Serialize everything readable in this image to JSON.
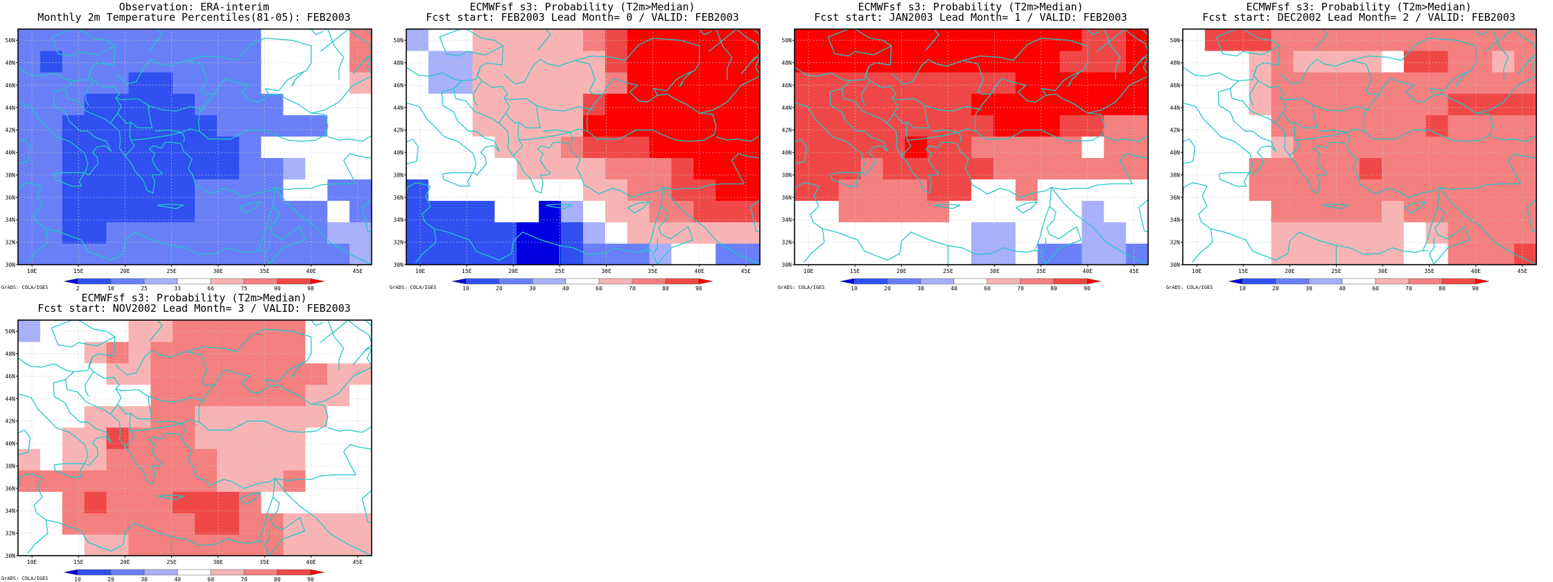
{
  "credit": "GrADS: COLA/IGES",
  "colors": {
    "coast": "#20c8c8",
    "frame": "#000000",
    "grid": "#c8c8c8",
    "palette": [
      "#0000e0",
      "#3050f0",
      "#6a80f6",
      "#a8b0fa",
      "#ffffff",
      "#f8b4b4",
      "#f48080",
      "#f04848",
      "#ff0000"
    ]
  },
  "chart_data": [
    {
      "type": "heatmap",
      "title": [
        "Observation: ERA-interim",
        "Monthly 2m Temperature Percentiles(81-05): FEB2003"
      ],
      "x_ticks": [
        "10E",
        "15E",
        "20E",
        "25E",
        "30E",
        "35E",
        "40E",
        "45E"
      ],
      "y_ticks": [
        "30N",
        "32N",
        "34N",
        "36N",
        "38N",
        "40N",
        "42N",
        "44N",
        "46N",
        "48N",
        "50N"
      ],
      "xlim": [
        8.5,
        46.5
      ],
      "ylim": [
        30,
        51
      ],
      "colorbar_labels": [
        "2",
        "10",
        "25",
        "33",
        "66",
        "75",
        "90",
        "98"
      ],
      "grid": [
        [
          2,
          2,
          2,
          2,
          2,
          2,
          2,
          2,
          2,
          2,
          2,
          2,
          2,
          2,
          2,
          3
        ],
        [
          2,
          2,
          1,
          1,
          2,
          2,
          2,
          2,
          2,
          2,
          2,
          2,
          2,
          2,
          3,
          3
        ],
        [
          2,
          2,
          1,
          1,
          1,
          1,
          1,
          1,
          2,
          2,
          2,
          2,
          2,
          2,
          4,
          2
        ],
        [
          2,
          2,
          1,
          1,
          1,
          1,
          1,
          1,
          2,
          2,
          2,
          2,
          4,
          4,
          2,
          2
        ],
        [
          2,
          2,
          1,
          1,
          1,
          1,
          1,
          1,
          1,
          1,
          2,
          2,
          3,
          4,
          4,
          4
        ],
        [
          2,
          2,
          1,
          1,
          1,
          1,
          1,
          1,
          1,
          1,
          2,
          4,
          4,
          4,
          4,
          4
        ],
        [
          2,
          2,
          1,
          1,
          1,
          1,
          1,
          1,
          1,
          2,
          2,
          2,
          2,
          2,
          4,
          4
        ],
        [
          2,
          2,
          2,
          1,
          1,
          1,
          1,
          1,
          2,
          2,
          2,
          2,
          4,
          4,
          4,
          4
        ],
        [
          2,
          2,
          2,
          2,
          2,
          1,
          1,
          2,
          2,
          2,
          2,
          4,
          4,
          4,
          4,
          5
        ],
        [
          2,
          1,
          2,
          2,
          2,
          2,
          2,
          2,
          2,
          2,
          2,
          4,
          4,
          4,
          4,
          6
        ],
        [
          2,
          2,
          2,
          2,
          2,
          2,
          2,
          2,
          2,
          2,
          2,
          4,
          4,
          4,
          4,
          6
        ]
      ]
    },
    {
      "type": "heatmap",
      "title": [
        "ECMWFsf s3: Probability (T2m>Median)",
        "Fcst start: FEB2003  Lead Month= 0 / VALID: FEB2003"
      ],
      "x_ticks": [
        "10E",
        "15E",
        "20E",
        "25E",
        "30E",
        "35E",
        "40E",
        "45E"
      ],
      "y_ticks": [
        "30N",
        "32N",
        "34N",
        "36N",
        "38N",
        "40N",
        "42N",
        "44N",
        "46N",
        "48N",
        "50N"
      ],
      "xlim": [
        8.5,
        46.5
      ],
      "ylim": [
        30,
        51
      ],
      "colorbar_labels": [
        "10",
        "20",
        "30",
        "40",
        "60",
        "70",
        "80",
        "90"
      ],
      "grid": [
        [
          1,
          1,
          1,
          1,
          1,
          0,
          0,
          1,
          2,
          2,
          2,
          3,
          4,
          4,
          2,
          2
        ],
        [
          1,
          1,
          1,
          1,
          1,
          0,
          0,
          1,
          3,
          4,
          5,
          5,
          5,
          5,
          5,
          5
        ],
        [
          1,
          1,
          1,
          1,
          4,
          4,
          0,
          3,
          4,
          5,
          5,
          6,
          6,
          7,
          7,
          7
        ],
        [
          1,
          4,
          4,
          4,
          4,
          4,
          4,
          4,
          5,
          5,
          6,
          6,
          7,
          7,
          8,
          8
        ],
        [
          4,
          4,
          4,
          4,
          4,
          5,
          5,
          5,
          5,
          6,
          6,
          6,
          7,
          8,
          8,
          8
        ],
        [
          4,
          4,
          4,
          4,
          5,
          5,
          5,
          6,
          7,
          7,
          7,
          8,
          8,
          8,
          8,
          8
        ],
        [
          4,
          4,
          4,
          5,
          5,
          5,
          5,
          5,
          8,
          8,
          8,
          8,
          8,
          8,
          8,
          8
        ],
        [
          4,
          4,
          4,
          5,
          5,
          5,
          5,
          5,
          7,
          8,
          8,
          8,
          8,
          8,
          8,
          8
        ],
        [
          4,
          3,
          3,
          5,
          5,
          5,
          5,
          5,
          5,
          6,
          8,
          8,
          8,
          8,
          8,
          8
        ],
        [
          4,
          3,
          3,
          5,
          5,
          5,
          5,
          5,
          5,
          7,
          8,
          8,
          8,
          8,
          8,
          8
        ],
        [
          3,
          4,
          4,
          5,
          5,
          5,
          5,
          5,
          6,
          7,
          8,
          8,
          8,
          8,
          8,
          8
        ]
      ]
    },
    {
      "type": "heatmap",
      "title": [
        "ECMWFsf s3: Probability (T2m>Median)",
        "Fcst start: JAN2003  Lead Month= 1 / VALID: FEB2003"
      ],
      "x_ticks": [
        "10E",
        "15E",
        "20E",
        "25E",
        "30E",
        "35E",
        "40E",
        "45E"
      ],
      "y_ticks": [
        "30N",
        "32N",
        "34N",
        "36N",
        "38N",
        "40N",
        "42N",
        "44N",
        "46N",
        "48N",
        "50N"
      ],
      "xlim": [
        8.5,
        46.5
      ],
      "ylim": [
        30,
        51
      ],
      "colorbar_labels": [
        "10",
        "20",
        "30",
        "40",
        "60",
        "70",
        "80",
        "90"
      ],
      "grid": [
        [
          4,
          4,
          4,
          4,
          4,
          4,
          4,
          4,
          3,
          3,
          4,
          2,
          2,
          3,
          3,
          2
        ],
        [
          4,
          4,
          4,
          4,
          4,
          4,
          4,
          4,
          3,
          3,
          4,
          4,
          4,
          3,
          3,
          4
        ],
        [
          4,
          4,
          6,
          6,
          6,
          6,
          6,
          4,
          4,
          4,
          4,
          4,
          4,
          3,
          4,
          4
        ],
        [
          7,
          7,
          6,
          6,
          6,
          6,
          7,
          7,
          4,
          4,
          6,
          4,
          4,
          4,
          4,
          4
        ],
        [
          7,
          7,
          7,
          6,
          7,
          7,
          7,
          7,
          7,
          6,
          6,
          6,
          6,
          6,
          6,
          6
        ],
        [
          7,
          7,
          7,
          7,
          7,
          8,
          7,
          7,
          6,
          6,
          6,
          6,
          6,
          4,
          6,
          6
        ],
        [
          7,
          7,
          7,
          7,
          7,
          7,
          7,
          7,
          7,
          8,
          8,
          8,
          7,
          7,
          6,
          6
        ],
        [
          7,
          7,
          7,
          7,
          7,
          7,
          7,
          7,
          8,
          8,
          8,
          8,
          8,
          8,
          8,
          8
        ],
        [
          7,
          7,
          7,
          7,
          7,
          7,
          7,
          7,
          7,
          7,
          8,
          8,
          8,
          8,
          8,
          8
        ],
        [
          8,
          8,
          8,
          8,
          8,
          8,
          8,
          8,
          8,
          8,
          8,
          8,
          7,
          7,
          7,
          8
        ],
        [
          8,
          8,
          8,
          8,
          8,
          8,
          8,
          8,
          8,
          8,
          8,
          8,
          8,
          7,
          7,
          8
        ]
      ]
    },
    {
      "type": "heatmap",
      "title": [
        "ECMWFsf s3: Probability (T2m>Median)",
        "Fcst start: DEC2002  Lead Month= 2 / VALID: FEB2003"
      ],
      "x_ticks": [
        "10E",
        "15E",
        "20E",
        "25E",
        "30E",
        "35E",
        "40E",
        "45E"
      ],
      "y_ticks": [
        "30N",
        "32N",
        "34N",
        "36N",
        "38N",
        "40N",
        "42N",
        "44N",
        "46N",
        "48N",
        "50N"
      ],
      "xlim": [
        8.5,
        46.5
      ],
      "ylim": [
        30,
        51
      ],
      "colorbar_labels": [
        "10",
        "20",
        "30",
        "40",
        "60",
        "70",
        "80",
        "90"
      ],
      "grid": [
        [
          4,
          4,
          4,
          4,
          5,
          5,
          5,
          5,
          5,
          5,
          4,
          4,
          6,
          6,
          6,
          7
        ],
        [
          4,
          4,
          4,
          4,
          5,
          5,
          5,
          5,
          5,
          5,
          4,
          5,
          6,
          6,
          6,
          6
        ],
        [
          4,
          4,
          4,
          4,
          6,
          6,
          6,
          6,
          6,
          5,
          6,
          6,
          6,
          6,
          6,
          6
        ],
        [
          4,
          4,
          4,
          6,
          6,
          6,
          6,
          6,
          6,
          6,
          6,
          6,
          6,
          6,
          6,
          6
        ],
        [
          4,
          4,
          4,
          6,
          6,
          6,
          6,
          6,
          7,
          6,
          6,
          6,
          6,
          6,
          6,
          6
        ],
        [
          4,
          4,
          4,
          4,
          5,
          6,
          6,
          6,
          6,
          6,
          6,
          6,
          6,
          6,
          6,
          6
        ],
        [
          4,
          4,
          4,
          4,
          6,
          6,
          6,
          6,
          6,
          6,
          6,
          7,
          6,
          6,
          6,
          6
        ],
        [
          4,
          4,
          4,
          5,
          6,
          6,
          6,
          6,
          6,
          6,
          6,
          6,
          7,
          7,
          7,
          7
        ],
        [
          4,
          4,
          4,
          5,
          6,
          6,
          6,
          6,
          6,
          6,
          6,
          6,
          6,
          6,
          6,
          6
        ],
        [
          4,
          4,
          4,
          5,
          6,
          5,
          5,
          5,
          5,
          4,
          7,
          7,
          6,
          6,
          5,
          6
        ],
        [
          4,
          7,
          7,
          7,
          6,
          6,
          6,
          6,
          6,
          6,
          6,
          6,
          6,
          6,
          6,
          6
        ]
      ]
    },
    {
      "type": "heatmap",
      "title": [
        "ECMWFsf s3: Probability (T2m>Median)",
        "Fcst start: NOV2002  Lead Month= 3 / VALID: FEB2003"
      ],
      "x_ticks": [
        "10E",
        "15E",
        "20E",
        "25E",
        "30E",
        "35E",
        "40E",
        "45E"
      ],
      "y_ticks": [
        "30N",
        "32N",
        "34N",
        "36N",
        "38N",
        "40N",
        "42N",
        "44N",
        "46N",
        "48N",
        "50N"
      ],
      "xlim": [
        8.5,
        46.5
      ],
      "ylim": [
        30,
        51
      ],
      "colorbar_labels": [
        "10",
        "20",
        "30",
        "40",
        "60",
        "70",
        "80",
        "90"
      ],
      "grid": [
        [
          4,
          4,
          4,
          5,
          5,
          6,
          6,
          6,
          6,
          6,
          6,
          6,
          5,
          5,
          5,
          5
        ],
        [
          4,
          4,
          6,
          6,
          6,
          6,
          6,
          6,
          7,
          7,
          6,
          6,
          5,
          5,
          5,
          5
        ],
        [
          4,
          4,
          6,
          7,
          6,
          6,
          6,
          7,
          7,
          7,
          6,
          4,
          4,
          4,
          4,
          4
        ],
        [
          6,
          6,
          6,
          6,
          6,
          6,
          6,
          6,
          6,
          5,
          5,
          5,
          6,
          4,
          4,
          4
        ],
        [
          5,
          4,
          5,
          5,
          6,
          6,
          6,
          6,
          6,
          5,
          5,
          5,
          5,
          4,
          4,
          4
        ],
        [
          4,
          4,
          5,
          5,
          7,
          6,
          6,
          6,
          5,
          5,
          5,
          5,
          5,
          4,
          4,
          4
        ],
        [
          4,
          4,
          4,
          5,
          5,
          5,
          6,
          6,
          5,
          5,
          5,
          5,
          5,
          5,
          4,
          4
        ],
        [
          4,
          4,
          4,
          4,
          4,
          4,
          6,
          6,
          6,
          6,
          6,
          6,
          6,
          5,
          5,
          4
        ],
        [
          4,
          4,
          4,
          4,
          5,
          5,
          6,
          6,
          6,
          6,
          6,
          6,
          6,
          6,
          5,
          5
        ],
        [
          4,
          4,
          4,
          5,
          6,
          5,
          6,
          6,
          6,
          6,
          6,
          6,
          6,
          4,
          4,
          4
        ],
        [
          3,
          4,
          4,
          4,
          4,
          5,
          5,
          6,
          6,
          6,
          6,
          6,
          6,
          4,
          4,
          4
        ]
      ]
    }
  ]
}
